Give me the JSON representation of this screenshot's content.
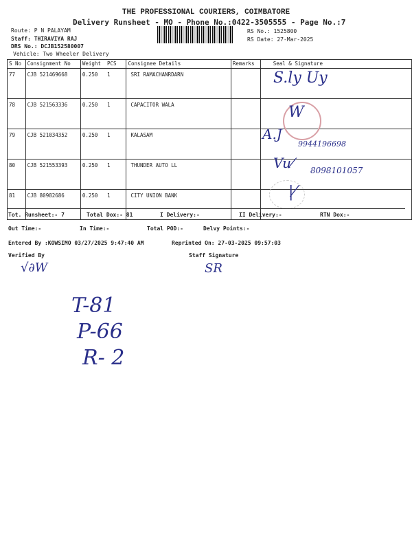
{
  "header": {
    "company": "THE PROFESSIONAL COURIERS, COIMBATORE",
    "subtitle": "Delivery Runsheet - MO - Phone No.:0422-3505555 - Page No.:7",
    "route": "Route: P N PALAYAM",
    "staff": "Staff: THIRAVIYA RAJ",
    "drs": "DRS No.: DCJB152580007",
    "vehicle": "Vehicle: Two Wheeler Delivery",
    "rs_no": "RS No.: 1525800",
    "rs_date": "RS Date: 27-Mar-2025"
  },
  "table": {
    "columns": [
      "S No",
      "Consignment No",
      "Weight",
      "PCS",
      "Consignee Details",
      "Remarks",
      "Seal & Signature"
    ],
    "rows": [
      {
        "sno": "77",
        "cons": "CJB 521469668",
        "weight": "0.250",
        "pcs": "1",
        "details": "SRI RAMACHANRDARN"
      },
      {
        "sno": "78",
        "cons": "CJB 521563336",
        "weight": "0.250",
        "pcs": "1",
        "details": "CAPACITOR WALA"
      },
      {
        "sno": "79",
        "cons": "CJB 521034352",
        "weight": "0.250",
        "pcs": "1",
        "details": "KALASAM"
      },
      {
        "sno": "80",
        "cons": "CJB 521553393",
        "weight": "0.250",
        "pcs": "1",
        "details": "THUNDER AUTO LL"
      },
      {
        "sno": "81",
        "cons": "CJB 80982686",
        "weight": "0.250",
        "pcs": "1",
        "details": "CITY  UNION BANK"
      }
    ]
  },
  "summary": {
    "tot_runsheet": "Tot. Runsheet:- 7",
    "total_dox": "Total Dox:-   81",
    "i_delivery": "I Delivery:-",
    "ii_delivery": "II Delivery:-",
    "rtn_dox": "RTN Dox:-",
    "out_time": "Out Time:-",
    "in_time": "In Time:-",
    "total_pod": "Total POD:-",
    "delvy_points": "Delvy Points:-",
    "entered_by": "Entered By :KOWSIMO 03/27/2025 9:47:40 AM",
    "reprinted": "Reprinted On: 27-03-2025 09:57:03",
    "verified_by": "Verified By",
    "staff_signature": "Staff Signature"
  },
  "handwriting": {
    "phone1": "9944196698",
    "phone2": "8098101057",
    "note1": "T-81",
    "note2": "P-66",
    "note3": "R- 2"
  }
}
